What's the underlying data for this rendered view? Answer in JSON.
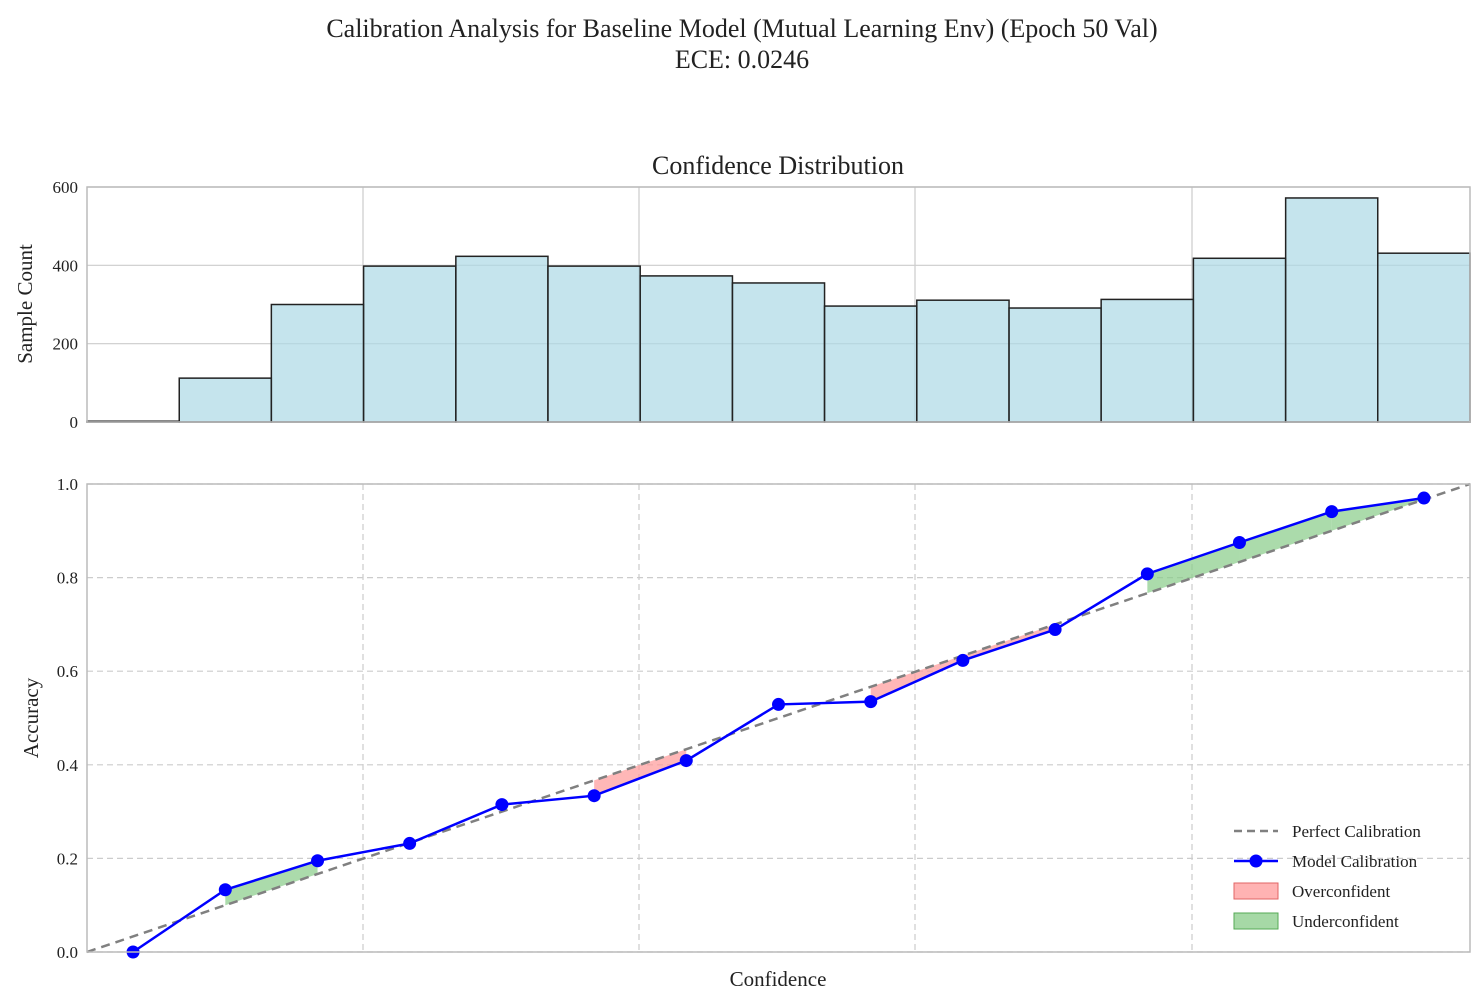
{
  "figure": {
    "title_line1": "Calibration Analysis for Baseline Model (Mutual Learning Env) (Epoch 50 Val)",
    "title_line2": "ECE: 0.0246"
  },
  "colors": {
    "bar_fill": "#add8e6",
    "bar_edge": "#222222",
    "model_line": "#0000ff",
    "perfect_line": "#808080",
    "overconfident": "#ff9999",
    "underconfident": "#88cc88",
    "grid": "#cccccc"
  },
  "chart_data": [
    {
      "type": "bar",
      "title": "Confidence Distribution",
      "xlabel": "",
      "ylabel": "Sample Count",
      "xlim": [
        0.0,
        1.0
      ],
      "ylim": [
        0,
        600
      ],
      "yticks": [
        "0",
        "200",
        "400",
        "600"
      ],
      "bin_edges": [
        0.0,
        0.0667,
        0.1333,
        0.2,
        0.2667,
        0.3333,
        0.4,
        0.4667,
        0.5333,
        0.6,
        0.6667,
        0.7333,
        0.8,
        0.8667,
        0.9333,
        1.0
      ],
      "values": [
        2,
        112,
        300,
        398,
        423,
        398,
        373,
        355,
        296,
        311,
        291,
        313,
        418,
        572,
        431
      ],
      "grid": true
    },
    {
      "type": "line",
      "title": "",
      "xlabel": "Confidence",
      "ylabel": "Accuracy",
      "xlim": [
        0.0,
        1.0
      ],
      "ylim": [
        0.0,
        1.0
      ],
      "yticks": [
        "0.0",
        "0.2",
        "0.4",
        "0.6",
        "0.8",
        "1.0"
      ],
      "grid": true,
      "legend_position": "bottom-right",
      "series": [
        {
          "name": "Perfect Calibration",
          "x": [
            0.0,
            1.0
          ],
          "y": [
            0.0,
            1.0
          ],
          "style": "dashed"
        },
        {
          "name": "Model Calibration",
          "x": [
            0.0333,
            0.1,
            0.1667,
            0.2333,
            0.3,
            0.3667,
            0.4333,
            0.5,
            0.5667,
            0.6333,
            0.7,
            0.7667,
            0.8333,
            0.9,
            0.9667
          ],
          "y": [
            0.0,
            0.133,
            0.195,
            0.232,
            0.315,
            0.334,
            0.409,
            0.529,
            0.535,
            0.623,
            0.689,
            0.808,
            0.875,
            0.941,
            0.97
          ],
          "style": "solid-marker"
        }
      ],
      "fill_legend": [
        {
          "name": "Overconfident",
          "color": "#ff9999"
        },
        {
          "name": "Underconfident",
          "color": "#88cc88"
        }
      ]
    }
  ]
}
